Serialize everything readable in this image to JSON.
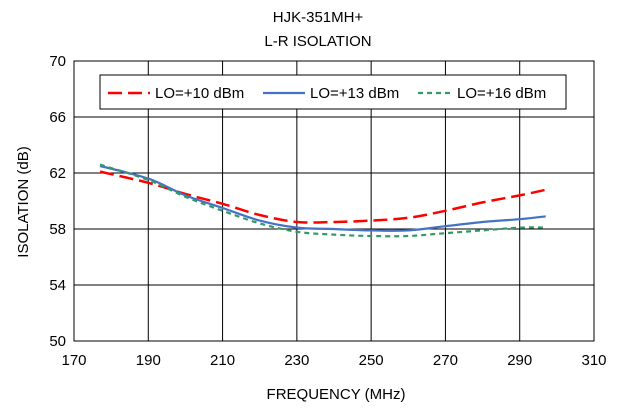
{
  "chart_data": {
    "type": "line",
    "title": "HJK-351MH+",
    "subtitle": "L-R ISOLATION",
    "xlabel": "FREQUENCY (MHz)",
    "ylabel": "ISOLATION (dB)",
    "xlim": [
      170,
      310
    ],
    "ylim": [
      50,
      70
    ],
    "x_ticks": [
      170,
      190,
      210,
      230,
      250,
      270,
      290,
      310
    ],
    "y_ticks": [
      50,
      54,
      58,
      62,
      66,
      70
    ],
    "grid": true,
    "legend_position": "top-center",
    "series": [
      {
        "name": "LO=+10 dBm",
        "color": "#ff0000",
        "dash": "dashed",
        "x": [
          177,
          190,
          200,
          210,
          220,
          230,
          240,
          250,
          260,
          270,
          280,
          290,
          297
        ],
        "y": [
          62.1,
          61.3,
          60.5,
          59.8,
          59.0,
          58.5,
          58.5,
          58.6,
          58.8,
          59.3,
          59.9,
          60.4,
          60.8
        ]
      },
      {
        "name": "LO=+13 dBm",
        "color": "#4472c4",
        "dash": "solid",
        "x": [
          177,
          190,
          200,
          210,
          220,
          230,
          240,
          250,
          260,
          270,
          280,
          290,
          297
        ],
        "y": [
          62.5,
          61.6,
          60.4,
          59.5,
          58.6,
          58.1,
          58.0,
          57.9,
          57.9,
          58.2,
          58.5,
          58.7,
          58.9
        ]
      },
      {
        "name": "LO=+16 dBm",
        "color": "#339966",
        "dash": "dotted",
        "x": [
          177,
          190,
          200,
          210,
          220,
          230,
          240,
          250,
          260,
          270,
          280,
          290,
          297
        ],
        "y": [
          62.6,
          61.5,
          60.3,
          59.3,
          58.4,
          57.8,
          57.6,
          57.5,
          57.5,
          57.7,
          57.9,
          58.1,
          58.1
        ]
      }
    ]
  }
}
